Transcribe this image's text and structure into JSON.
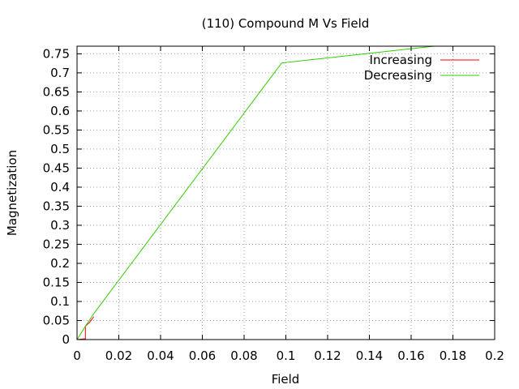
{
  "chart_data": {
    "type": "line",
    "title": "(110) Compound M Vs Field",
    "xlabel": "Field",
    "ylabel": "Magnetization",
    "xlim": [
      0,
      0.2
    ],
    "ylim": [
      0,
      0.77
    ],
    "x_ticks": [
      "0",
      "0.02",
      "0.04",
      "0.06",
      "0.08",
      "0.1",
      "0.12",
      "0.14",
      "0.16",
      "0.18",
      "0.2"
    ],
    "y_ticks": [
      "0",
      "0.05",
      "0.1",
      "0.15",
      "0.2",
      "0.25",
      "0.3",
      "0.35",
      "0.4",
      "0.45",
      "0.5",
      "0.55",
      "0.6",
      "0.65",
      "0.7",
      "0.75"
    ],
    "grid": true,
    "legend_position": "top-right",
    "series": [
      {
        "name": "Increasing",
        "color": "#ff0000",
        "points": [
          [
            0,
            0
          ],
          [
            0.004,
            0.002
          ],
          [
            0.004,
            0.035
          ],
          [
            0.006,
            0.045
          ],
          [
            0.008,
            0.06
          ]
        ]
      },
      {
        "name": "Decreasing",
        "color": "#33cc00",
        "points": [
          [
            0.171,
            0.77
          ],
          [
            0.098,
            0.726
          ],
          [
            0.008,
            0.068
          ],
          [
            0.004,
            0.035
          ],
          [
            0,
            0
          ]
        ]
      }
    ]
  }
}
